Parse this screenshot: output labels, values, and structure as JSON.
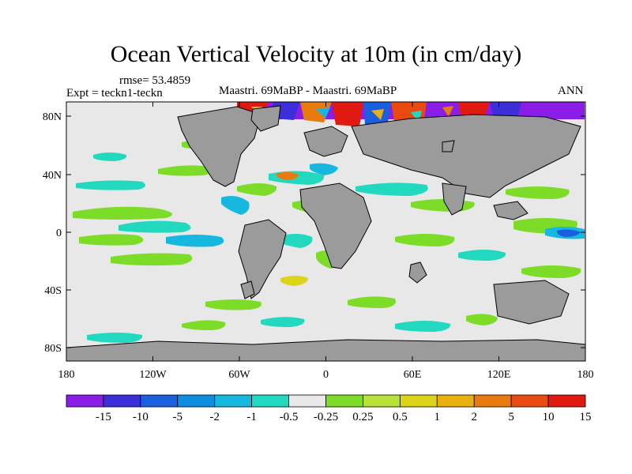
{
  "title": "Ocean Vertical Velocity at 10m (in cm/day)",
  "rmse_label": "rmse= 53.4859",
  "expt_label": "Expt = teckn1-teckn",
  "center_label": "Maastri. 69MaBP - Maastri. 69MaBP",
  "period_label": "ANN",
  "map": {
    "lat_ticks": [
      "80N",
      "40N",
      "0",
      "40S",
      "80S"
    ],
    "lon_ticks": [
      "180",
      "120W",
      "60W",
      "0",
      "60E",
      "120E",
      "180"
    ],
    "land_color": "#9b9b9b",
    "ocean_color": "#e8e8e8"
  },
  "colorbar": {
    "colors": [
      "#8a1ee6",
      "#3c2fd9",
      "#1a5fe0",
      "#0d8ee0",
      "#16b8e0",
      "#22d9c0",
      "#e8e8e8",
      "#7cdc28",
      "#b8e23a",
      "#dcd418",
      "#e8b010",
      "#e87a10",
      "#e84a10",
      "#e01a10"
    ],
    "labels": [
      "-15",
      "-10",
      "-5",
      "-2",
      "-1",
      "-0.5",
      "-0.25",
      "0.25",
      "0.5",
      "1",
      "2",
      "5",
      "10",
      "15"
    ]
  }
}
